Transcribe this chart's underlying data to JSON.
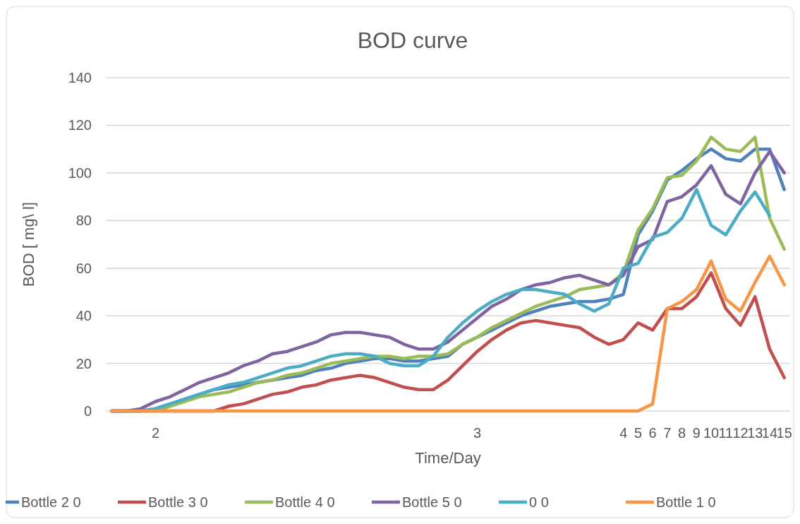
{
  "chart_data": {
    "type": "line",
    "title": "BOD curve",
    "xlabel": "Time/Day",
    "ylabel": "BOD [ mg\\ l]",
    "categories": [
      null,
      null,
      null,
      "2",
      null,
      null,
      null,
      null,
      null,
      null,
      null,
      null,
      null,
      null,
      null,
      null,
      null,
      null,
      null,
      null,
      null,
      null,
      null,
      null,
      null,
      "3",
      null,
      null,
      null,
      null,
      null,
      null,
      null,
      null,
      null,
      "4",
      "5",
      "6",
      "7",
      "8",
      "9",
      "10",
      "11",
      "12",
      "13",
      "14",
      "15"
    ],
    "ylim": [
      0,
      140
    ],
    "yticks": [
      0,
      20,
      40,
      60,
      80,
      100,
      120,
      140
    ],
    "grid": "y",
    "legend": "bottom",
    "line_style": "solid",
    "marker": "none",
    "series": [
      {
        "name": "Bottle 2 0",
        "color": "#4f81bd",
        "values": [
          0,
          0,
          0,
          1,
          3,
          5,
          7,
          9,
          10,
          11,
          12,
          13,
          14,
          15,
          17,
          18,
          20,
          21,
          22,
          22,
          21,
          21,
          22,
          23,
          28,
          31,
          34,
          37,
          40,
          42,
          44,
          45,
          46,
          46,
          47,
          49,
          74,
          84,
          97,
          101,
          106,
          110,
          106,
          105,
          110,
          110,
          93
        ]
      },
      {
        "name": "Bottle 3 0",
        "color": "#c0504d",
        "values": [
          0,
          0,
          0,
          0,
          0,
          0,
          0,
          0,
          2,
          3,
          5,
          7,
          8,
          10,
          11,
          13,
          14,
          15,
          14,
          12,
          10,
          9,
          9,
          13,
          19,
          25,
          30,
          34,
          37,
          38,
          37,
          36,
          35,
          31,
          28,
          30,
          37,
          34,
          43,
          43,
          48,
          58,
          43,
          36,
          48,
          26,
          14
        ]
      },
      {
        "name": "Bottle 4 0",
        "color": "#9bbb59",
        "values": [
          0,
          0,
          0,
          0,
          2,
          4,
          6,
          7,
          8,
          10,
          12,
          13,
          15,
          16,
          18,
          20,
          21,
          22,
          23,
          23,
          22,
          23,
          23,
          24,
          28,
          31,
          35,
          38,
          41,
          44,
          46,
          48,
          51,
          52,
          53,
          58,
          76,
          85,
          98,
          99,
          105,
          115,
          110,
          109,
          115,
          81,
          68
        ]
      },
      {
        "name": "Bottle 5 0",
        "color": "#8064a2",
        "values": [
          0,
          0,
          1,
          4,
          6,
          9,
          12,
          14,
          16,
          19,
          21,
          24,
          25,
          27,
          29,
          32,
          33,
          33,
          32,
          31,
          28,
          26,
          26,
          29,
          34,
          39,
          44,
          47,
          51,
          53,
          54,
          56,
          57,
          55,
          53,
          57,
          69,
          72,
          88,
          90,
          95,
          103,
          91,
          87,
          100,
          109,
          100
        ]
      },
      {
        "name": "0 0",
        "color": "#4bacc6",
        "values": [
          0,
          0,
          0,
          1,
          3,
          5,
          7,
          9,
          11,
          12,
          14,
          16,
          18,
          19,
          21,
          23,
          24,
          24,
          23,
          20,
          19,
          19,
          23,
          31,
          37,
          42,
          46,
          49,
          51,
          51,
          50,
          49,
          45,
          42,
          45,
          60,
          62,
          73,
          75,
          81,
          93,
          78,
          74,
          84,
          92,
          82,
          null
        ]
      },
      {
        "name": "Bottle 1 0",
        "color": "#f79646",
        "values": [
          0,
          0,
          0,
          0,
          0,
          0,
          0,
          0,
          0,
          0,
          0,
          0,
          0,
          0,
          0,
          0,
          0,
          0,
          0,
          0,
          0,
          0,
          0,
          0,
          0,
          0,
          0,
          0,
          0,
          0,
          0,
          0,
          0,
          0,
          0,
          0,
          0,
          3,
          43,
          46,
          51,
          63,
          47,
          42,
          54,
          65,
          53
        ]
      }
    ]
  }
}
